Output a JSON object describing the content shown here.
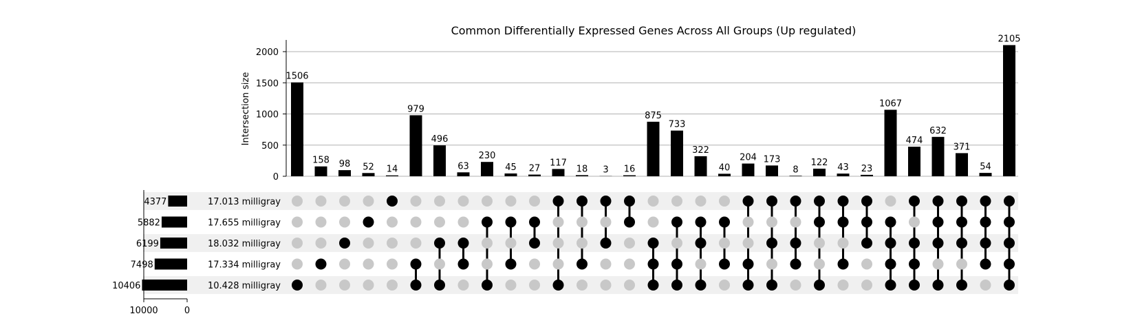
{
  "chart_data": {
    "type": "bar",
    "title": "Common Differentially Expressed Genes Across All Groups (Up regulated)",
    "ylabel": "Intersection size",
    "ylim": [
      0,
      2200
    ],
    "yticks": [
      "0",
      "500",
      "1000",
      "1500",
      "2000"
    ],
    "grid": true,
    "sets": [
      {
        "name": "17.013 milligray",
        "size": 4377
      },
      {
        "name": "17.655 milligray",
        "size": 5882
      },
      {
        "name": "18.032 milligray",
        "size": 6199
      },
      {
        "name": "17.334 milligray",
        "size": 7498
      },
      {
        "name": "10.428 milligray",
        "size": 10406
      }
    ],
    "set_axis_ticks": [
      "10000",
      "0"
    ],
    "set_axis_max": 10000,
    "intersections": [
      {
        "value": 1506,
        "sets": [
          4
        ]
      },
      {
        "value": 158,
        "sets": [
          3
        ]
      },
      {
        "value": 98,
        "sets": [
          2
        ]
      },
      {
        "value": 52,
        "sets": [
          1
        ]
      },
      {
        "value": 14,
        "sets": [
          0
        ]
      },
      {
        "value": 979,
        "sets": [
          3,
          4
        ]
      },
      {
        "value": 496,
        "sets": [
          2,
          4
        ]
      },
      {
        "value": 63,
        "sets": [
          2,
          3
        ]
      },
      {
        "value": 230,
        "sets": [
          1,
          4
        ]
      },
      {
        "value": 45,
        "sets": [
          1,
          3
        ]
      },
      {
        "value": 27,
        "sets": [
          1,
          2
        ]
      },
      {
        "value": 117,
        "sets": [
          0,
          4
        ]
      },
      {
        "value": 18,
        "sets": [
          0,
          3
        ]
      },
      {
        "value": 3,
        "sets": [
          0,
          2
        ]
      },
      {
        "value": 16,
        "sets": [
          0,
          1
        ]
      },
      {
        "value": 875,
        "sets": [
          2,
          3,
          4
        ]
      },
      {
        "value": 733,
        "sets": [
          1,
          3,
          4
        ]
      },
      {
        "value": 322,
        "sets": [
          1,
          2,
          4
        ]
      },
      {
        "value": 40,
        "sets": [
          1,
          3
        ]
      },
      {
        "value": 204,
        "sets": [
          0,
          3,
          4
        ]
      },
      {
        "value": 173,
        "sets": [
          0,
          2,
          4
        ]
      },
      {
        "value": 8,
        "sets": [
          0,
          2,
          3
        ]
      },
      {
        "value": 122,
        "sets": [
          0,
          1,
          4
        ]
      },
      {
        "value": 43,
        "sets": [
          0,
          1,
          3
        ]
      },
      {
        "value": 23,
        "sets": [
          0,
          1,
          2
        ]
      },
      {
        "value": 1067,
        "sets": [
          1,
          2,
          3,
          4
        ]
      },
      {
        "value": 474,
        "sets": [
          0,
          2,
          3,
          4
        ]
      },
      {
        "value": 632,
        "sets": [
          0,
          1,
          2,
          4
        ]
      },
      {
        "value": 371,
        "sets": [
          0,
          1,
          2,
          4
        ]
      },
      {
        "value": 54,
        "sets": [
          0,
          1,
          2,
          3
        ]
      },
      {
        "value": 2105,
        "sets": [
          0,
          1,
          2,
          3,
          4
        ]
      }
    ],
    "colors": {
      "bar": "#000000",
      "dot_active": "#000000",
      "dot_inactive": "#c8c8c8",
      "stripe": "#f0f0f0",
      "grid": "#b0b0b0"
    }
  }
}
